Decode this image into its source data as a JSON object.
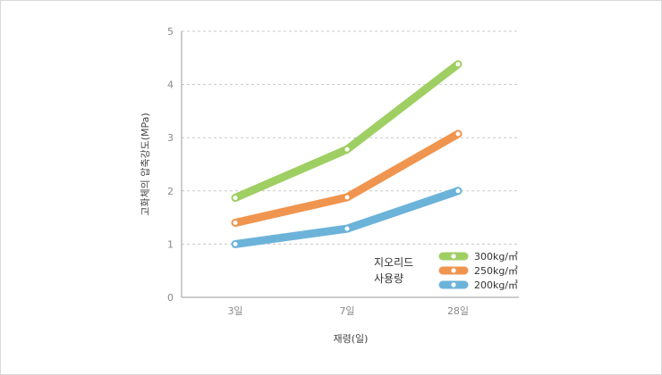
{
  "chart_data": {
    "type": "line",
    "categories": [
      "3일",
      "7일",
      "28일"
    ],
    "series": [
      {
        "name": "300kg/㎥",
        "values": [
          1.87,
          2.78,
          4.38
        ],
        "color": "#9fcf63"
      },
      {
        "name": "250kg/㎥",
        "values": [
          1.4,
          1.88,
          3.07
        ],
        "color": "#f0954f"
      },
      {
        "name": "200kg/㎥",
        "values": [
          1.0,
          1.29,
          2.0
        ],
        "color": "#6cb3d9"
      }
    ],
    "xlabel": "재령(일)",
    "ylabel": "고화체의 압축강도(MPa)",
    "ylim": [
      0,
      5
    ],
    "yticks": [
      "0",
      "1",
      "2",
      "3",
      "4",
      "5"
    ],
    "grid": "horizontal dashed",
    "legend": {
      "title_lines": [
        "지오리드",
        "사용량"
      ],
      "placement": "bottom-right"
    }
  }
}
